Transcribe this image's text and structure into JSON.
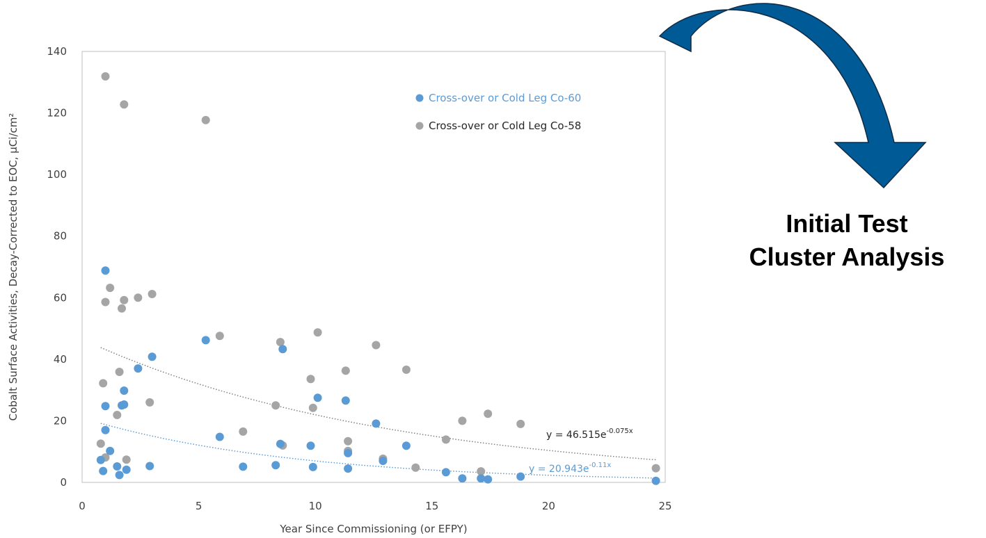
{
  "chart_data": {
    "type": "scatter",
    "xlabel": "Year Since Commissioning (or EFPY)",
    "ylabel": "Cobalt Surface Activities, Decay-Corrected to EOC, µCi/cm²",
    "xlim": [
      0,
      25
    ],
    "ylim": [
      0,
      140
    ],
    "x_ticks": [
      "0",
      "5",
      "10",
      "15",
      "20",
      "25"
    ],
    "y_ticks": [
      "0",
      "20",
      "40",
      "60",
      "80",
      "100",
      "120",
      "140"
    ],
    "grid": false,
    "legend_position": "top-right",
    "series": [
      {
        "name": "Cross-over or Cold Leg Co-60",
        "color": "#5B9BD5",
        "points": [
          [
            0.8,
            7.3
          ],
          [
            0.9,
            3.7
          ],
          [
            1.0,
            68.8
          ],
          [
            1.0,
            24.8
          ],
          [
            1.0,
            17.0
          ],
          [
            1.2,
            10.2
          ],
          [
            1.5,
            5.2
          ],
          [
            1.6,
            2.4
          ],
          [
            1.7,
            25.0
          ],
          [
            1.8,
            29.8
          ],
          [
            1.8,
            25.3
          ],
          [
            1.9,
            4.1
          ],
          [
            2.4,
            37.0
          ],
          [
            2.9,
            5.3
          ],
          [
            3.0,
            40.8
          ],
          [
            5.3,
            46.2
          ],
          [
            5.9,
            14.8
          ],
          [
            6.9,
            5.1
          ],
          [
            8.3,
            5.6
          ],
          [
            8.5,
            12.5
          ],
          [
            8.6,
            43.3
          ],
          [
            9.8,
            11.9
          ],
          [
            9.9,
            5.0
          ],
          [
            10.1,
            27.5
          ],
          [
            11.3,
            26.6
          ],
          [
            11.4,
            4.5
          ],
          [
            11.4,
            9.5
          ],
          [
            12.6,
            19.1
          ],
          [
            12.9,
            7.0
          ],
          [
            13.9,
            11.9
          ],
          [
            15.6,
            3.3
          ],
          [
            16.3,
            1.3
          ],
          [
            17.1,
            1.3
          ],
          [
            17.4,
            1.0
          ],
          [
            18.8,
            1.9
          ],
          [
            24.6,
            0.5
          ]
        ],
        "trendline": {
          "a": 20.943,
          "b": -0.11,
          "equation": "y = 20.943e",
          "exponent": "-0.11x",
          "color": "#5B9BD5"
        }
      },
      {
        "name": "Cross-over or Cold Leg Co-58",
        "color": "#A5A5A5",
        "points": [
          [
            0.8,
            12.6
          ],
          [
            0.9,
            32.2
          ],
          [
            1.0,
            131.9
          ],
          [
            1.0,
            58.6
          ],
          [
            1.0,
            8.1
          ],
          [
            1.2,
            63.2
          ],
          [
            1.6,
            35.9
          ],
          [
            1.5,
            21.9
          ],
          [
            1.7,
            56.5
          ],
          [
            1.8,
            122.8
          ],
          [
            1.8,
            59.2
          ],
          [
            1.9,
            7.4
          ],
          [
            2.4,
            60.0
          ],
          [
            2.9,
            26.0
          ],
          [
            3.0,
            61.2
          ],
          [
            5.3,
            117.7
          ],
          [
            5.9,
            47.6
          ],
          [
            6.9,
            16.5
          ],
          [
            8.3,
            25.0
          ],
          [
            8.5,
            45.6
          ],
          [
            8.6,
            12.0
          ],
          [
            9.8,
            33.6
          ],
          [
            9.9,
            24.2
          ],
          [
            10.1,
            48.7
          ],
          [
            11.3,
            36.3
          ],
          [
            11.4,
            13.4
          ],
          [
            11.4,
            10.2
          ],
          [
            12.6,
            44.6
          ],
          [
            12.9,
            7.7
          ],
          [
            13.9,
            36.6
          ],
          [
            14.3,
            4.8
          ],
          [
            15.6,
            13.9
          ],
          [
            16.3,
            20.0
          ],
          [
            17.1,
            3.6
          ],
          [
            17.4,
            22.3
          ],
          [
            18.8,
            19.0
          ],
          [
            24.6,
            4.6
          ]
        ],
        "trendline": {
          "a": 46.515,
          "b": -0.075,
          "equation": "y = 46.515e",
          "exponent": "-0.075x",
          "color": "#808080"
        }
      }
    ]
  },
  "annotation": {
    "line1": "Initial Test",
    "line2": "Cluster Analysis",
    "arrow_color": "#005A96",
    "arrow_stroke": "#0F2A44"
  }
}
